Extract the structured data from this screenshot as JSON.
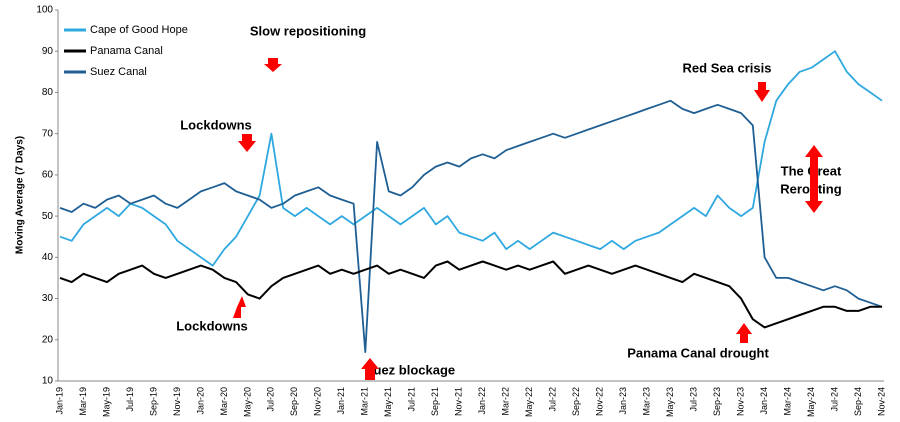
{
  "chart_data": {
    "type": "line",
    "y_label": "Moving Average (7 Days)",
    "categories": [
      "Jan-19",
      null,
      "Mar-19",
      null,
      "May-19",
      null,
      "Jul-19",
      null,
      "Sep-19",
      null,
      "Nov-19",
      null,
      "Jan-20",
      null,
      "Mar-20",
      null,
      "May-20",
      null,
      "Jul-20",
      null,
      "Sep-20",
      null,
      "Nov-20",
      null,
      "Jan-21",
      null,
      "Mar-21",
      null,
      "May-21",
      null,
      "Jul-21",
      null,
      "Sep-21",
      null,
      "Nov-21",
      null,
      "Jan-22",
      null,
      "Mar-22",
      null,
      "May-22",
      null,
      "Jul-22",
      null,
      "Sep-22",
      null,
      "Nov-22",
      null,
      "Jan-23",
      null,
      "Mar-23",
      null,
      "May-23",
      null,
      "Jul-23",
      null,
      "Sep-23",
      null,
      "Nov-23",
      null,
      "Jan-24",
      null,
      "Mar-24",
      null,
      "May-24",
      null,
      "Jul-24",
      null,
      "Sep-24",
      null,
      "Nov-24"
    ],
    "series": [
      {
        "name": "Cape of Good Hope",
        "color": "#2ea8df",
        "values": [
          45,
          44,
          48,
          50,
          52,
          50,
          53,
          52,
          50,
          48,
          44,
          42,
          40,
          38,
          42,
          45,
          50,
          55,
          70,
          52,
          50,
          52,
          50,
          48,
          50,
          48,
          50,
          52,
          50,
          48,
          50,
          52,
          48,
          50,
          46,
          45,
          44,
          46,
          42,
          44,
          42,
          44,
          46,
          45,
          44,
          43,
          42,
          44,
          42,
          44,
          45,
          46,
          48,
          50,
          52,
          50,
          55,
          52,
          50,
          52,
          68,
          78,
          82,
          85,
          86,
          88,
          90,
          85,
          82,
          80,
          78
        ]
      },
      {
        "name": "Panama Canal",
        "color": "#000000",
        "values": [
          35,
          34,
          36,
          35,
          34,
          36,
          37,
          38,
          36,
          35,
          36,
          37,
          38,
          37,
          35,
          34,
          31,
          30,
          33,
          35,
          36,
          37,
          38,
          36,
          37,
          36,
          37,
          38,
          36,
          37,
          36,
          35,
          38,
          39,
          37,
          38,
          39,
          38,
          37,
          38,
          37,
          38,
          39,
          36,
          37,
          38,
          37,
          36,
          37,
          38,
          37,
          36,
          35,
          34,
          36,
          35,
          34,
          33,
          30,
          25,
          23,
          24,
          25,
          26,
          27,
          28,
          28,
          27,
          27,
          28,
          28
        ]
      },
      {
        "name": "Suez Canal",
        "color": "#1f5f94",
        "values": [
          52,
          51,
          53,
          52,
          54,
          55,
          53,
          54,
          55,
          53,
          52,
          54,
          56,
          57,
          58,
          56,
          55,
          54,
          52,
          53,
          55,
          56,
          57,
          55,
          54,
          53,
          17,
          68,
          56,
          55,
          57,
          60,
          62,
          63,
          62,
          64,
          65,
          64,
          66,
          67,
          68,
          69,
          70,
          69,
          70,
          71,
          72,
          73,
          74,
          75,
          76,
          77,
          78,
          76,
          75,
          76,
          77,
          76,
          75,
          72,
          40,
          35,
          35,
          34,
          33,
          32,
          33,
          32,
          30,
          29,
          28
        ]
      }
    ],
    "ylim": [
      10,
      100
    ],
    "yticks": [
      10,
      20,
      30,
      40,
      50,
      60,
      70,
      80,
      90,
      100
    ],
    "legend": "upper left",
    "annotations": [
      "Slow repositioning",
      "Lockdowns",
      "Lockdowns",
      "Suez blockage",
      "Red Sea crisis",
      "The Great",
      "Rerouting",
      "Panama Canal drought"
    ]
  }
}
